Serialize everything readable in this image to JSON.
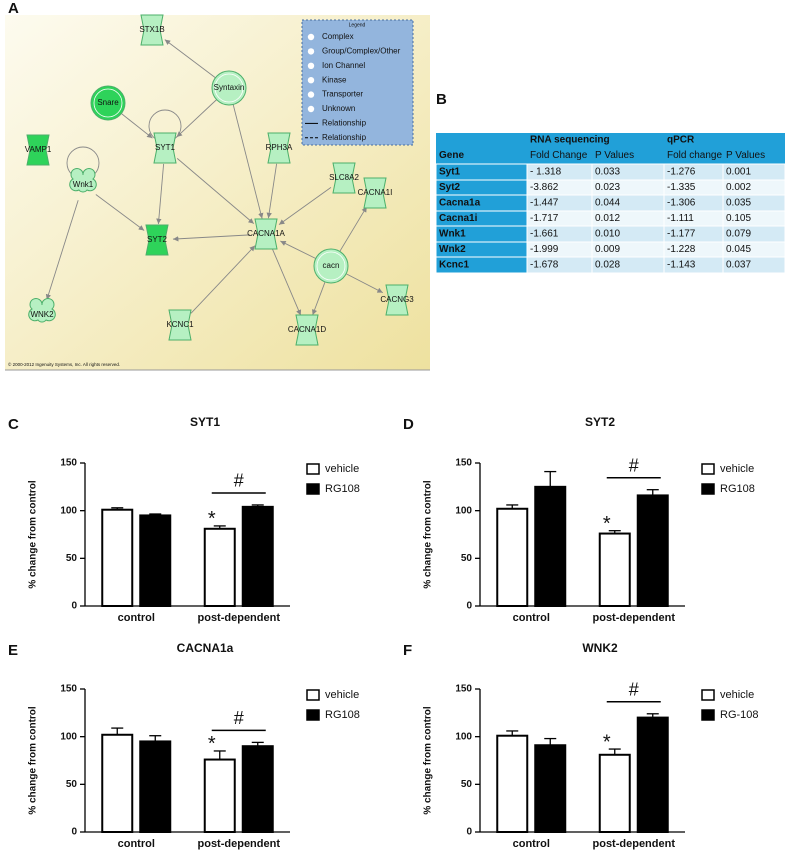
{
  "network": {
    "panel": "A",
    "nodes": [
      {
        "label": "STX1B"
      },
      {
        "label": "Syntaxin"
      },
      {
        "label": "Snare"
      },
      {
        "label": "VAMP1"
      },
      {
        "label": "SYT1"
      },
      {
        "label": "RPH3A"
      },
      {
        "label": "SLC8A2"
      },
      {
        "label": "CACNA1I"
      },
      {
        "label": "Wnk1"
      },
      {
        "label": "SYT2"
      },
      {
        "label": "CACNA1A"
      },
      {
        "label": "cacn"
      },
      {
        "label": "WNK2"
      },
      {
        "label": "KCNC1"
      },
      {
        "label": "CACNA1D"
      },
      {
        "label": "CACNG3"
      }
    ],
    "legend": {
      "title": "Legend",
      "items": [
        "Complex",
        "Group/Complex/Other",
        "Ion Channel",
        "Kinase",
        "Transporter",
        "Unknown",
        "Relationship",
        "Relationship"
      ]
    },
    "copyright": "© 2000-2012 Ingenuity Systems, Inc. All rights reserved."
  },
  "table": {
    "panel": "B",
    "groups": [
      "RNA sequencing",
      "qPCR"
    ],
    "columns": [
      "Gene",
      "Fold Change",
      "P Values",
      "Fold change",
      "P Values"
    ],
    "rows": [
      [
        "Syt1",
        "- 1.318",
        "0.033",
        "-1.276",
        "0.001"
      ],
      [
        "Syt2",
        "-3.862",
        "0.023",
        "-1.335",
        "0.002"
      ],
      [
        "Cacna1a",
        "-1.447",
        "0.044",
        "-1.306",
        "0.035"
      ],
      [
        "Cacna1i",
        "-1.717",
        "0.012",
        "-1.111",
        "0.105"
      ],
      [
        "Wnk1",
        "-1.661",
        "0.010",
        "-1.177",
        "0.079"
      ],
      [
        "Wnk2",
        "-1.999",
        "0.009",
        "-1.228",
        "0.045"
      ],
      [
        "Kcnc1",
        "-1.678",
        "0.028",
        "-1.143",
        "0.037"
      ]
    ]
  },
  "chart_data": [
    {
      "type": "bar",
      "panel": "C",
      "title": "SYT1",
      "ylabel": "% change from control",
      "categories": [
        "control",
        "post-dependent"
      ],
      "series": [
        {
          "name": "vehicle",
          "color": "#ffffff",
          "values": [
            101,
            81
          ],
          "errors": [
            2,
            3
          ]
        },
        {
          "name": "RG108",
          "color": "#000000",
          "values": [
            95,
            104
          ],
          "errors": [
            1.5,
            2
          ]
        }
      ],
      "ylim": [
        0,
        150
      ],
      "yticks": [
        0,
        50,
        100,
        150
      ],
      "annotations": [
        "*",
        "#"
      ]
    },
    {
      "type": "bar",
      "panel": "D",
      "title": "SYT2",
      "ylabel": "% change from control",
      "categories": [
        "control",
        "post-dependent"
      ],
      "series": [
        {
          "name": "vehicle",
          "color": "#ffffff",
          "values": [
            102,
            76
          ],
          "errors": [
            4,
            3
          ]
        },
        {
          "name": "RG108",
          "color": "#000000",
          "values": [
            125,
            116
          ],
          "errors": [
            16,
            6
          ]
        }
      ],
      "ylim": [
        0,
        150
      ],
      "yticks": [
        0,
        50,
        100,
        150
      ],
      "annotations": [
        "*",
        "#"
      ]
    },
    {
      "type": "bar",
      "panel": "E",
      "title": "CACNA1a",
      "ylabel": "% change from control",
      "categories": [
        "control",
        "post-dependent"
      ],
      "series": [
        {
          "name": "vehicle",
          "color": "#ffffff",
          "values": [
            102,
            76
          ],
          "errors": [
            7,
            9
          ]
        },
        {
          "name": "RG108",
          "color": "#000000",
          "values": [
            95,
            90
          ],
          "errors": [
            6,
            4
          ]
        }
      ],
      "ylim": [
        0,
        150
      ],
      "yticks": [
        0,
        50,
        100,
        150
      ],
      "annotations": [
        "*",
        "#"
      ]
    },
    {
      "type": "bar",
      "panel": "F",
      "title": "WNK2",
      "ylabel": "% change from control",
      "categories": [
        "control",
        "post-dependent"
      ],
      "series": [
        {
          "name": "vehicle",
          "color": "#ffffff",
          "values": [
            101,
            81
          ],
          "errors": [
            5,
            6
          ]
        },
        {
          "name": "RG-108",
          "color": "#000000",
          "values": [
            91,
            120
          ],
          "errors": [
            7,
            4
          ]
        }
      ],
      "ylim": [
        0,
        150
      ],
      "yticks": [
        0,
        50,
        100,
        150
      ],
      "annotations": [
        "*",
        "#"
      ]
    }
  ]
}
